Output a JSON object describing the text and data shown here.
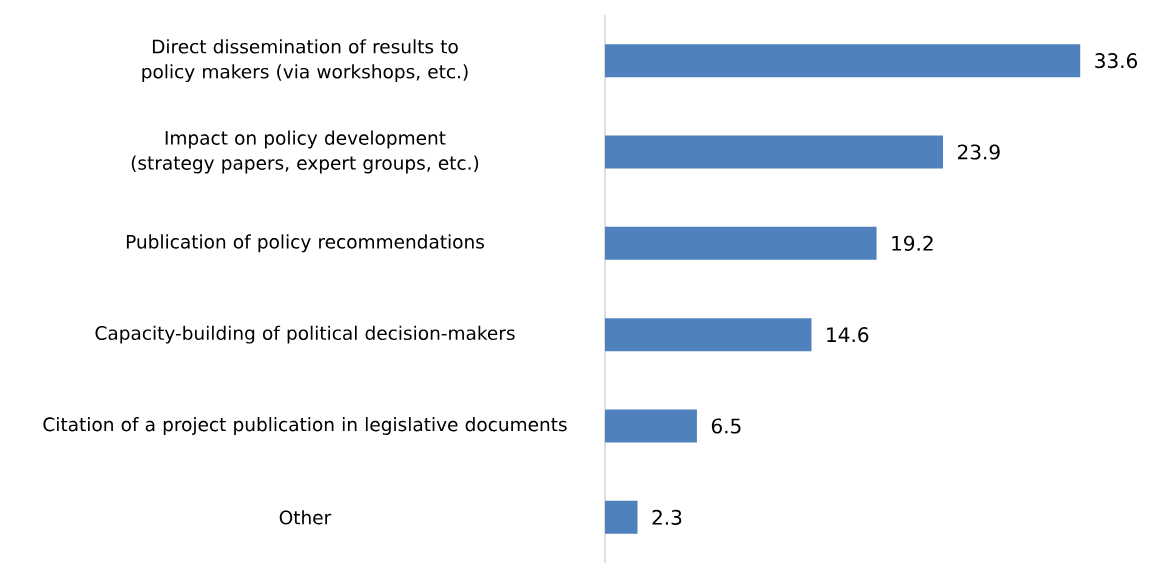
{
  "chart_data": {
    "type": "bar",
    "orientation": "horizontal",
    "categories": [
      "Direct dissemination of results to policy makers (via workshops, etc.)",
      "Impact on policy development (strategy papers, expert groups, etc.)",
      "Publication of policy recommendations",
      "Capacity-building of political decision-makers",
      "Citation of a project publication in legislative documents",
      "Other"
    ],
    "values": [
      33.6,
      23.9,
      19.2,
      14.6,
      6.5,
      2.3
    ],
    "color": "#4f81bd",
    "data_labels": true,
    "tick_labels": "y"
  }
}
